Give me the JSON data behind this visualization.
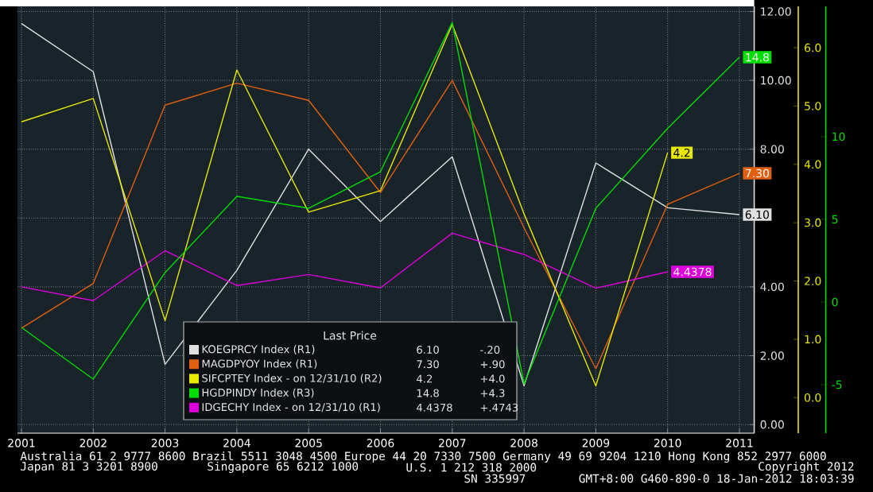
{
  "chart_data": {
    "type": "line",
    "categories": [
      "2001",
      "2002",
      "2003",
      "2004",
      "2005",
      "2006",
      "2007",
      "2008",
      "2009",
      "2010",
      "2011"
    ],
    "series": [
      {
        "name": "KOEGPRCY Index (R1)",
        "color": "#e0e0e0",
        "axis": "y",
        "values": [
          11.65,
          10.25,
          1.75,
          4.48,
          8.0,
          5.9,
          7.78,
          1.13,
          7.6,
          6.3,
          6.1
        ],
        "value_labels": [
          null,
          null,
          null,
          null,
          null,
          null,
          null,
          null,
          null,
          null,
          "6.10"
        ]
      },
      {
        "name": "MAGDPYOY Index (R1)",
        "color": "#e06010",
        "axis": "y",
        "values": [
          2.8,
          4.1,
          9.28,
          9.92,
          9.42,
          6.74,
          10.0,
          5.72,
          1.62,
          6.4,
          7.3
        ],
        "value_labels": [
          null,
          null,
          null,
          null,
          null,
          null,
          null,
          null,
          null,
          null,
          "7.30"
        ]
      },
      {
        "name": "SIFCPTEY Index - on 12/31/10 (R2)",
        "color": "#e8e800",
        "axis": "y2",
        "values": [
          4.73,
          5.13,
          1.32,
          5.62,
          3.18,
          3.55,
          6.4,
          3.15,
          0.2,
          4.2,
          null
        ],
        "value_labels": [
          null,
          null,
          null,
          null,
          null,
          null,
          null,
          null,
          null,
          "4.2",
          null
        ]
      },
      {
        "name": "HGDPINDY Index (R3)",
        "color": "#00dd00",
        "axis": "y3",
        "values": [
          -1.54,
          -4.66,
          1.78,
          6.39,
          5.67,
          7.88,
          16.9,
          -4.95,
          5.67,
          10.5,
          14.8
        ],
        "value_labels": [
          null,
          null,
          null,
          null,
          null,
          null,
          null,
          null,
          null,
          null,
          "14.8"
        ]
      },
      {
        "name": "IDGECHY Index - on 12/31/10 (R1)",
        "color": "#dd00dd",
        "axis": "y",
        "values": [
          4.0,
          3.6,
          5.05,
          4.04,
          4.36,
          3.97,
          5.56,
          4.94,
          3.96,
          4.4378,
          null
        ],
        "value_labels": [
          null,
          null,
          null,
          null,
          null,
          null,
          null,
          null,
          null,
          "4.4378",
          null
        ]
      }
    ],
    "ylim": [
      -0.25,
      12.15
    ],
    "yticks": [
      {
        "value": 0,
        "label": "0.00"
      },
      {
        "value": 2,
        "label": "2.00"
      },
      {
        "value": 4,
        "label": "4.00"
      },
      {
        "value": 6,
        "label": null
      },
      {
        "value": 8,
        "label": "8.00"
      },
      {
        "value": 10,
        "label": "10.00"
      },
      {
        "value": 12,
        "label": "12.00"
      }
    ],
    "y2lim": [
      -0.61,
      6.71
    ],
    "y2ticks": [
      {
        "value": 0,
        "label": "0.0"
      },
      {
        "value": 1,
        "label": "1.0"
      },
      {
        "value": 2,
        "label": "2.0"
      },
      {
        "value": 3,
        "label": "3.0"
      },
      {
        "value": 4,
        "label": "4.0"
      },
      {
        "value": 5,
        "label": "5.0"
      },
      {
        "value": 6,
        "label": "6.0"
      }
    ],
    "y3lim": [
      -7.93,
      17.88
    ],
    "y3ticks": [
      -5,
      0,
      5,
      10
    ],
    "legend_title": "Last Price",
    "legend": "bottom",
    "grid": true,
    "annotations": [
      "-.20",
      "+.90",
      "+4.0",
      "+4.3",
      "+.4743",
      "Australia 61 2 9777 8600 Brazil 5511 3048 4500 Europe 44 20 7330 7500 Germany 49 69 9204 1210 Hong Kong 852 2977 6000",
      "Japan 81 3 3201 8900",
      "Singapore 65 6212 1000",
      "U.S. 1 212 318 2000",
      "Copyright 2012",
      "SN 335997",
      "GMT+8:00 G460-890-0 18-Jan-2012 18:03:39"
    ]
  }
}
